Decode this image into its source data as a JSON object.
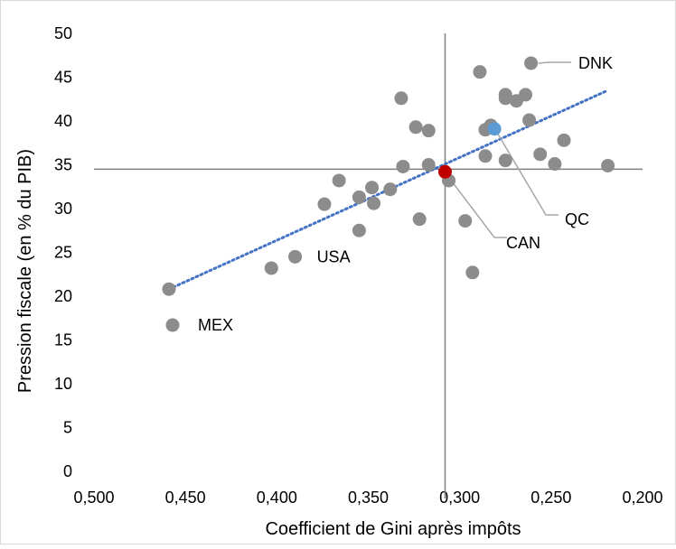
{
  "colors": {
    "point": "#8c8c8c",
    "trend": "#4472c4",
    "qc": "#5b9bd5",
    "can": "#c00000",
    "axis": "#7f7f7f",
    "frame": "#d9d9d9",
    "leader": "#a6a6a6"
  },
  "chart_data": {
    "type": "scatter",
    "title": "",
    "xlabel": "Coefficient de Gini après impôts",
    "ylabel": "Pression fiscale (en % du PIB)",
    "xlim": [
      0.5,
      0.2
    ],
    "x_reversed": true,
    "ylim": [
      0,
      50
    ],
    "x_ticks": [
      "0,500",
      "0,450",
      "0,400",
      "0,350",
      "0,300",
      "0,250",
      "0,200"
    ],
    "y_ticks": [
      "0",
      "5",
      "10",
      "15",
      "20",
      "25",
      "30",
      "35",
      "40",
      "45",
      "50"
    ],
    "reference_lines": {
      "x": 0.308,
      "y": 34.5
    },
    "trendline": {
      "style": "dotted",
      "from": [
        0.459,
        20.8
      ],
      "to": [
        0.219,
        43.5
      ]
    },
    "points": [
      {
        "x": 0.459,
        "y": 20.8
      },
      {
        "x": 0.457,
        "y": 16.7,
        "label": "MEX"
      },
      {
        "x": 0.403,
        "y": 23.2
      },
      {
        "x": 0.39,
        "y": 24.5,
        "label": "USA"
      },
      {
        "x": 0.374,
        "y": 30.5
      },
      {
        "x": 0.366,
        "y": 33.2
      },
      {
        "x": 0.355,
        "y": 31.3
      },
      {
        "x": 0.355,
        "y": 27.5
      },
      {
        "x": 0.348,
        "y": 32.4
      },
      {
        "x": 0.347,
        "y": 30.6
      },
      {
        "x": 0.338,
        "y": 32.2
      },
      {
        "x": 0.331,
        "y": 34.8
      },
      {
        "x": 0.332,
        "y": 42.6
      },
      {
        "x": 0.324,
        "y": 39.3
      },
      {
        "x": 0.322,
        "y": 28.8
      },
      {
        "x": 0.317,
        "y": 35.0
      },
      {
        "x": 0.317,
        "y": 38.9
      },
      {
        "x": 0.306,
        "y": 33.2
      },
      {
        "x": 0.297,
        "y": 28.6
      },
      {
        "x": 0.293,
        "y": 22.7
      },
      {
        "x": 0.289,
        "y": 45.6
      },
      {
        "x": 0.286,
        "y": 39.0
      },
      {
        "x": 0.286,
        "y": 36.0
      },
      {
        "x": 0.283,
        "y": 39.5
      },
      {
        "x": 0.275,
        "y": 43.0
      },
      {
        "x": 0.275,
        "y": 42.6
      },
      {
        "x": 0.275,
        "y": 35.5
      },
      {
        "x": 0.269,
        "y": 42.3
      },
      {
        "x": 0.264,
        "y": 43.0
      },
      {
        "x": 0.262,
        "y": 40.1
      },
      {
        "x": 0.261,
        "y": 46.6,
        "label": "DNK"
      },
      {
        "x": 0.256,
        "y": 36.2
      },
      {
        "x": 0.248,
        "y": 35.1
      },
      {
        "x": 0.243,
        "y": 37.8
      },
      {
        "x": 0.219,
        "y": 34.9
      },
      {
        "x": 0.281,
        "y": 39.1,
        "label": "QC",
        "highlight": "qc"
      },
      {
        "x": 0.308,
        "y": 34.2,
        "label": "CAN",
        "highlight": "can"
      }
    ]
  }
}
